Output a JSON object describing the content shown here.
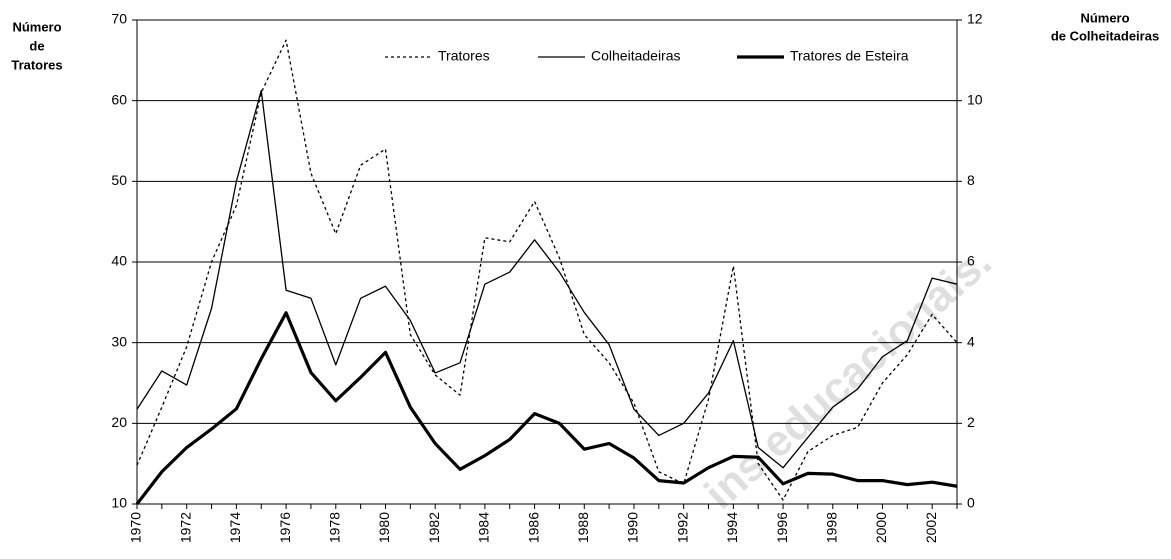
{
  "chart_data": {
    "type": "line",
    "y_label": [
      "Número",
      "de",
      "Tratores"
    ],
    "y2_label": [
      "Número",
      "de Colheitadeiras"
    ],
    "watermark": "ins educacionais.",
    "categories": [
      "1970",
      null,
      "1972",
      null,
      "1974",
      null,
      "1976",
      null,
      "1978",
      null,
      "1980",
      null,
      "1982",
      null,
      "1984",
      null,
      "1986",
      null,
      "1988",
      null,
      "1990",
      null,
      "1992",
      null,
      "1994",
      null,
      "1996",
      null,
      "1998",
      null,
      "2000",
      null,
      "2002",
      null
    ],
    "series": [
      {
        "name": "Tratores",
        "color": "#000000",
        "style": "dotted",
        "axis": "y",
        "values": [
          14.8,
          22,
          29.5,
          40,
          47,
          61,
          67.5,
          51,
          43.5,
          52,
          54,
          31,
          26,
          23.5,
          43,
          42.5,
          47.5,
          40.5,
          31,
          27.5,
          22.5,
          14,
          12.5,
          23,
          39.5,
          15,
          10.5,
          16.5,
          18.5,
          19.5,
          25,
          28.5,
          33.5,
          30
        ]
      },
      {
        "name": "Colheitadeiras",
        "color": "#000000",
        "style": "solid",
        "axis": "y2",
        "values": [
          2.35,
          3.3,
          2.95,
          4.85,
          8.0,
          10.25,
          5.3,
          5.1,
          3.45,
          5.1,
          5.4,
          4.55,
          3.25,
          3.5,
          5.45,
          5.75,
          6.55,
          5.75,
          4.75,
          3.95,
          2.35,
          1.7,
          2.0,
          2.75,
          4.05,
          1.4,
          0.9,
          1.65,
          2.4,
          2.85,
          3.65,
          4.05,
          5.6,
          5.45
        ]
      },
      {
        "name": "Tratores de Esteira",
        "color": "#000000",
        "style": "thick",
        "axis": "y",
        "values": [
          10,
          14,
          17,
          19.3,
          21.8,
          28,
          33.7,
          26.3,
          22.8,
          25.7,
          28.8,
          22,
          17.5,
          14.3,
          16,
          18,
          21.2,
          20,
          16.8,
          17.5,
          15.7,
          12.9,
          12.6,
          14.5,
          15.9,
          15.8,
          12.5,
          13.8,
          13.7,
          12.9,
          12.9,
          12.4,
          12.7,
          12.2
        ]
      }
    ],
    "ylim": [
      10,
      70
    ],
    "yticks": [
      10,
      20,
      30,
      40,
      50,
      60,
      70
    ],
    "y2lim": [
      0,
      12
    ],
    "y2ticks": [
      0,
      2,
      4,
      6,
      8,
      10,
      12
    ],
    "grid": true
  }
}
